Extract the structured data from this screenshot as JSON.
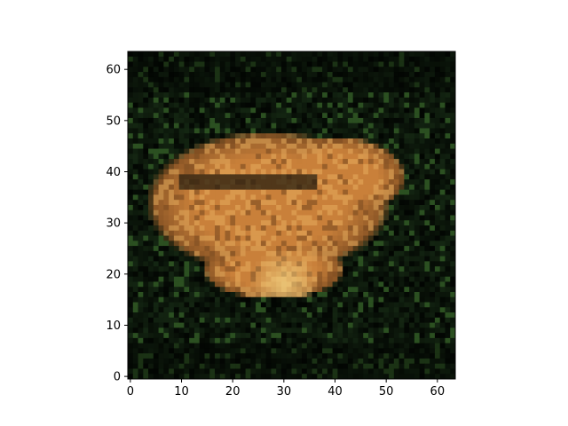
{
  "image": {
    "subject": "",
    "pixel_grid": [
      64,
      64
    ],
    "palette": {
      "fur_orange": "#c9803a",
      "fur_light": "#e8b060",
      "fur_shadow": "#7a4a20",
      "fur_highlight": "#f0d080",
      "foliage_dark": "#0c1a0c",
      "foliage_mid": "#1f3a1c",
      "foliage_light": "#3a6a2a",
      "background_black": "#020502"
    }
  },
  "chart_data": {
    "type": "image",
    "xlim": [
      -0.5,
      63.5
    ],
    "ylim": [
      63.5,
      -0.5
    ],
    "x_ticks": [
      0,
      10,
      20,
      30,
      40,
      50,
      60
    ],
    "y_ticks": [
      0,
      10,
      20,
      30,
      40,
      50,
      60
    ],
    "x_tick_labels": [
      "0",
      "10",
      "20",
      "30",
      "40",
      "50",
      "60"
    ],
    "y_tick_labels": [
      "0",
      "10",
      "20",
      "30",
      "40",
      "50",
      "60"
    ],
    "title": "",
    "xlabel": "",
    "ylabel": "",
    "grid": false
  }
}
